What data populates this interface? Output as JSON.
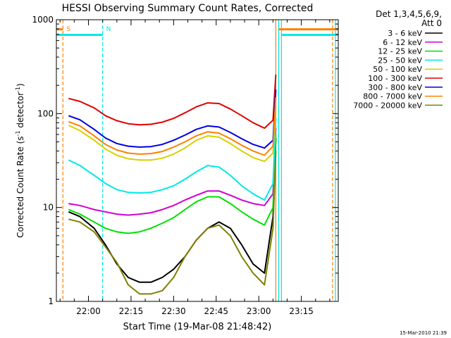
{
  "chart_data": {
    "type": "line",
    "title": "HESSI Observing Summary Count Rates, Corrected",
    "xlabel": "Start Time (19-Mar-08 21:48:42)",
    "ylabel_main": "Corrected Count Rate (s",
    "ylabel_sup1": "-1",
    "ylabel_mid": " detector",
    "ylabel_sup2": "-1",
    "ylabel_end": ")",
    "yscale": "log",
    "ylim": [
      1,
      1000
    ],
    "xlim": [
      "21:48:42",
      "23:28:00"
    ],
    "y_ticks": [
      {
        "value": 1,
        "label": "1"
      },
      {
        "value": 10,
        "label": "10"
      },
      {
        "value": 100,
        "label": "100"
      },
      {
        "value": 1000,
        "label": "1000"
      }
    ],
    "x_ticks": [
      {
        "value": "22:00",
        "label": "22:00"
      },
      {
        "value": "22:15",
        "label": "22:15"
      },
      {
        "value": "22:30",
        "label": "22:30"
      },
      {
        "value": "22:45",
        "label": "22:45"
      },
      {
        "value": "23:00",
        "label": "23:00"
      },
      {
        "value": "23:15",
        "label": "23:15"
      }
    ],
    "legend_header": [
      "Det 1,3,4,5,6,9,",
      "Att 0"
    ],
    "legend_position": "right",
    "series": [
      {
        "name": "3 - 6 keV",
        "color": "#000000",
        "points": [
          [
            "21:53",
            9
          ],
          [
            "21:57",
            8
          ],
          [
            "22:02",
            6
          ],
          [
            "22:06",
            4
          ],
          [
            "22:10",
            2.5
          ],
          [
            "22:14",
            1.8
          ],
          [
            "22:18",
            1.6
          ],
          [
            "22:22",
            1.6
          ],
          [
            "22:26",
            1.8
          ],
          [
            "22:30",
            2.2
          ],
          [
            "22:34",
            3
          ],
          [
            "22:38",
            4.5
          ],
          [
            "22:42",
            6
          ],
          [
            "22:46",
            7
          ],
          [
            "22:50",
            6
          ],
          [
            "22:54",
            4
          ],
          [
            "22:58",
            2.5
          ],
          [
            "23:02",
            2
          ],
          [
            "23:05",
            8
          ],
          [
            "23:06",
            55
          ]
        ]
      },
      {
        "name": "6 - 12 keV",
        "color": "#d000d0",
        "points": [
          [
            "21:53",
            11
          ],
          [
            "21:57",
            10.5
          ],
          [
            "22:02",
            9.5
          ],
          [
            "22:06",
            9
          ],
          [
            "22:10",
            8.5
          ],
          [
            "22:14",
            8.3
          ],
          [
            "22:18",
            8.5
          ],
          [
            "22:22",
            8.8
          ],
          [
            "22:26",
            9.5
          ],
          [
            "22:30",
            10.5
          ],
          [
            "22:34",
            12
          ],
          [
            "22:38",
            13.5
          ],
          [
            "22:42",
            15
          ],
          [
            "22:46",
            15
          ],
          [
            "22:50",
            13.5
          ],
          [
            "22:54",
            12
          ],
          [
            "22:58",
            11
          ],
          [
            "23:02",
            10.5
          ],
          [
            "23:05",
            14
          ],
          [
            "23:06",
            70
          ]
        ]
      },
      {
        "name": "12 - 25 keV",
        "color": "#00e000",
        "points": [
          [
            "21:53",
            9.5
          ],
          [
            "21:57",
            8.5
          ],
          [
            "22:02",
            7
          ],
          [
            "22:06",
            6
          ],
          [
            "22:10",
            5.5
          ],
          [
            "22:14",
            5.3
          ],
          [
            "22:18",
            5.5
          ],
          [
            "22:22",
            6
          ],
          [
            "22:26",
            6.8
          ],
          [
            "22:30",
            7.8
          ],
          [
            "22:34",
            9.5
          ],
          [
            "22:38",
            11.5
          ],
          [
            "22:42",
            13
          ],
          [
            "22:46",
            13
          ],
          [
            "22:50",
            11
          ],
          [
            "22:54",
            9
          ],
          [
            "22:58",
            7.5
          ],
          [
            "23:02",
            6.5
          ],
          [
            "23:05",
            10
          ],
          [
            "23:06",
            60
          ]
        ]
      },
      {
        "name": "25 - 50 keV",
        "color": "#00e8e8",
        "points": [
          [
            "21:53",
            32
          ],
          [
            "21:57",
            28
          ],
          [
            "22:02",
            22
          ],
          [
            "22:06",
            18
          ],
          [
            "22:10",
            15.5
          ],
          [
            "22:14",
            14.5
          ],
          [
            "22:18",
            14.3
          ],
          [
            "22:22",
            14.5
          ],
          [
            "22:26",
            15.5
          ],
          [
            "22:30",
            17
          ],
          [
            "22:34",
            20
          ],
          [
            "22:38",
            24
          ],
          [
            "22:42",
            28
          ],
          [
            "22:46",
            27
          ],
          [
            "22:50",
            22
          ],
          [
            "22:54",
            17
          ],
          [
            "22:58",
            14
          ],
          [
            "23:02",
            12
          ],
          [
            "23:05",
            18
          ],
          [
            "23:06",
            90
          ]
        ]
      },
      {
        "name": "50 - 100 keV",
        "color": "#d8d000",
        "points": [
          [
            "21:53",
            75
          ],
          [
            "21:57",
            66
          ],
          [
            "22:02",
            52
          ],
          [
            "22:06",
            42
          ],
          [
            "22:10",
            36
          ],
          [
            "22:14",
            33
          ],
          [
            "22:18",
            32
          ],
          [
            "22:22",
            32
          ],
          [
            "22:26",
            33.5
          ],
          [
            "22:30",
            37
          ],
          [
            "22:34",
            43
          ],
          [
            "22:38",
            52
          ],
          [
            "22:42",
            58
          ],
          [
            "22:46",
            56
          ],
          [
            "22:50",
            48
          ],
          [
            "22:54",
            40
          ],
          [
            "22:58",
            34
          ],
          [
            "23:02",
            31
          ],
          [
            "23:05",
            38
          ],
          [
            "23:06",
            120
          ]
        ]
      },
      {
        "name": "100 - 300 keV",
        "color": "#e00000",
        "points": [
          [
            "21:53",
            145
          ],
          [
            "21:57",
            135
          ],
          [
            "22:02",
            115
          ],
          [
            "22:06",
            95
          ],
          [
            "22:10",
            84
          ],
          [
            "22:14",
            78
          ],
          [
            "22:18",
            76
          ],
          [
            "22:22",
            77
          ],
          [
            "22:26",
            81
          ],
          [
            "22:30",
            89
          ],
          [
            "22:34",
            102
          ],
          [
            "22:38",
            118
          ],
          [
            "22:42",
            130
          ],
          [
            "22:46",
            128
          ],
          [
            "22:50",
            112
          ],
          [
            "22:54",
            95
          ],
          [
            "22:58",
            80
          ],
          [
            "23:02",
            70
          ],
          [
            "23:05",
            85
          ],
          [
            "23:06",
            260
          ]
        ]
      },
      {
        "name": "300 - 800 keV",
        "color": "#0000e0",
        "points": [
          [
            "21:53",
            95
          ],
          [
            "21:57",
            86
          ],
          [
            "22:02",
            68
          ],
          [
            "22:06",
            55
          ],
          [
            "22:10",
            48
          ],
          [
            "22:14",
            45
          ],
          [
            "22:18",
            44
          ],
          [
            "22:22",
            44.5
          ],
          [
            "22:26",
            47
          ],
          [
            "22:30",
            52
          ],
          [
            "22:34",
            59
          ],
          [
            "22:38",
            68
          ],
          [
            "22:42",
            74
          ],
          [
            "22:46",
            72
          ],
          [
            "22:50",
            63
          ],
          [
            "22:54",
            54
          ],
          [
            "22:58",
            47
          ],
          [
            "23:02",
            43
          ],
          [
            "23:05",
            52
          ],
          [
            "23:06",
            180
          ]
        ]
      },
      {
        "name": "800 - 7000 keV",
        "color": "#ff8000",
        "points": [
          [
            "21:53",
            82
          ],
          [
            "21:57",
            74
          ],
          [
            "22:02",
            58
          ],
          [
            "22:06",
            47
          ],
          [
            "22:10",
            41
          ],
          [
            "22:14",
            38
          ],
          [
            "22:18",
            37
          ],
          [
            "22:22",
            37.5
          ],
          [
            "22:26",
            39.5
          ],
          [
            "22:30",
            44
          ],
          [
            "22:34",
            50
          ],
          [
            "22:38",
            58
          ],
          [
            "22:42",
            64
          ],
          [
            "22:46",
            62
          ],
          [
            "22:50",
            54
          ],
          [
            "22:54",
            46
          ],
          [
            "22:58",
            40
          ],
          [
            "23:02",
            36
          ],
          [
            "23:05",
            45
          ],
          [
            "23:06",
            150
          ]
        ]
      },
      {
        "name": "7000 - 20000 keV",
        "color": "#808000",
        "points": [
          [
            "21:53",
            7.5
          ],
          [
            "21:57",
            7
          ],
          [
            "22:02",
            5.5
          ],
          [
            "22:06",
            3.8
          ],
          [
            "22:10",
            2.6
          ],
          [
            "22:14",
            1.5
          ],
          [
            "22:18",
            1.2
          ],
          [
            "22:22",
            1.2
          ],
          [
            "22:26",
            1.3
          ],
          [
            "22:30",
            1.8
          ],
          [
            "22:34",
            3
          ],
          [
            "22:38",
            4.5
          ],
          [
            "22:42",
            6
          ],
          [
            "22:46",
            6.5
          ],
          [
            "22:50",
            5
          ],
          [
            "22:54",
            3
          ],
          [
            "22:58",
            2
          ],
          [
            "23:02",
            1.5
          ],
          [
            "23:05",
            6
          ],
          [
            "23:06",
            40
          ]
        ]
      }
    ],
    "annotations": [
      {
        "label": "S",
        "time": "21:51",
        "color": "#ff8000"
      },
      {
        "label": "N",
        "time": "22:05",
        "color": "#00e8e8"
      }
    ],
    "orange_bars": [
      {
        "from": "21:48:42",
        "to": "21:51",
        "value": 790
      },
      {
        "from": "23:07",
        "to": "23:28",
        "value": 790
      }
    ],
    "cyan_bars": [
      {
        "from": "21:48:42",
        "to": "22:05",
        "value": 690
      },
      {
        "from": "23:08",
        "to": "23:28",
        "value": 690
      }
    ],
    "vertical_lines": [
      {
        "time": "21:51",
        "color": "#ff8000",
        "dashed": true
      },
      {
        "time": "22:05",
        "color": "#00e8e8",
        "dashed": true
      },
      {
        "time": "23:06",
        "color": "#ff8000",
        "dashed": false
      },
      {
        "time": "23:07",
        "color": "#00e8e8",
        "dashed": false
      },
      {
        "time": "23:08",
        "color": "#00e8e8",
        "dashed": false
      },
      {
        "time": "23:26",
        "color": "#ff8000",
        "dashed": true
      },
      {
        "time": "23:27",
        "color": "#00e8e8",
        "dashed": false
      }
    ]
  },
  "footer_timestamp": "15-Mar-2010 21:39"
}
